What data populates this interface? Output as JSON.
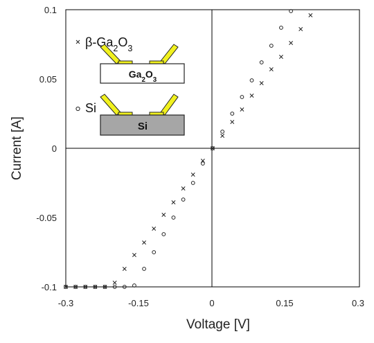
{
  "chart_data": {
    "type": "scatter",
    "xlabel": "Voltage [V]",
    "ylabel": "Current [A]",
    "xlim": [
      -0.3,
      0.3
    ],
    "ylim": [
      -0.1,
      0.1
    ],
    "x_ticks": [
      "-0.3",
      "-0.15",
      "0",
      "0.15",
      "0.3"
    ],
    "x_tick_values": [
      -0.3,
      -0.15,
      0,
      0.15,
      0.3
    ],
    "y_ticks": [
      "0.1",
      "0.05",
      "0",
      "-0.05",
      "-0.1"
    ],
    "y_tick_values": [
      0.1,
      0.05,
      0,
      -0.05,
      -0.1
    ],
    "grid": false,
    "legend_position": "top-left",
    "series": [
      {
        "name": "β-Ga2O3",
        "marker": "x",
        "x": [
          -0.3,
          -0.28,
          -0.26,
          -0.24,
          -0.22,
          -0.2,
          -0.18,
          -0.16,
          -0.14,
          -0.12,
          -0.1,
          -0.08,
          -0.06,
          -0.04,
          -0.02,
          0.0,
          0.02,
          0.04,
          0.06,
          0.08,
          0.1,
          0.12,
          0.14,
          0.16,
          0.18,
          0.2
        ],
        "y": [
          -0.1,
          -0.1,
          -0.1,
          -0.1,
          -0.1,
          -0.097,
          -0.087,
          -0.077,
          -0.068,
          -0.058,
          -0.048,
          -0.039,
          -0.029,
          -0.019,
          -0.009,
          0.0,
          0.009,
          0.019,
          0.028,
          0.038,
          0.047,
          0.057,
          0.066,
          0.076,
          0.086,
          0.096
        ]
      },
      {
        "name": "Si",
        "marker": "o",
        "x": [
          -0.3,
          -0.28,
          -0.26,
          -0.24,
          -0.22,
          -0.2,
          -0.18,
          -0.16,
          -0.14,
          -0.12,
          -0.1,
          -0.08,
          -0.06,
          -0.04,
          -0.02,
          0.0,
          0.02,
          0.04,
          0.06,
          0.08,
          0.1,
          0.12,
          0.14,
          0.16
        ],
        "y": [
          -0.1,
          -0.1,
          -0.1,
          -0.1,
          -0.1,
          -0.1,
          -0.1,
          -0.099,
          -0.087,
          -0.075,
          -0.062,
          -0.05,
          -0.037,
          -0.025,
          -0.011,
          0.0,
          0.012,
          0.025,
          0.037,
          0.049,
          0.062,
          0.074,
          0.087,
          0.099
        ]
      }
    ]
  },
  "legend": {
    "items": [
      {
        "marker": "x",
        "label": "β-Ga2O3"
      },
      {
        "marker": "o",
        "label": "Si"
      }
    ]
  },
  "diagram": {
    "ga2o3_label": "Ga2O3",
    "si_label": "Si",
    "contact_color": "#f1f11e",
    "ga2o3_box_color": "#ffffff",
    "si_box_color": "#a6a6a6"
  }
}
